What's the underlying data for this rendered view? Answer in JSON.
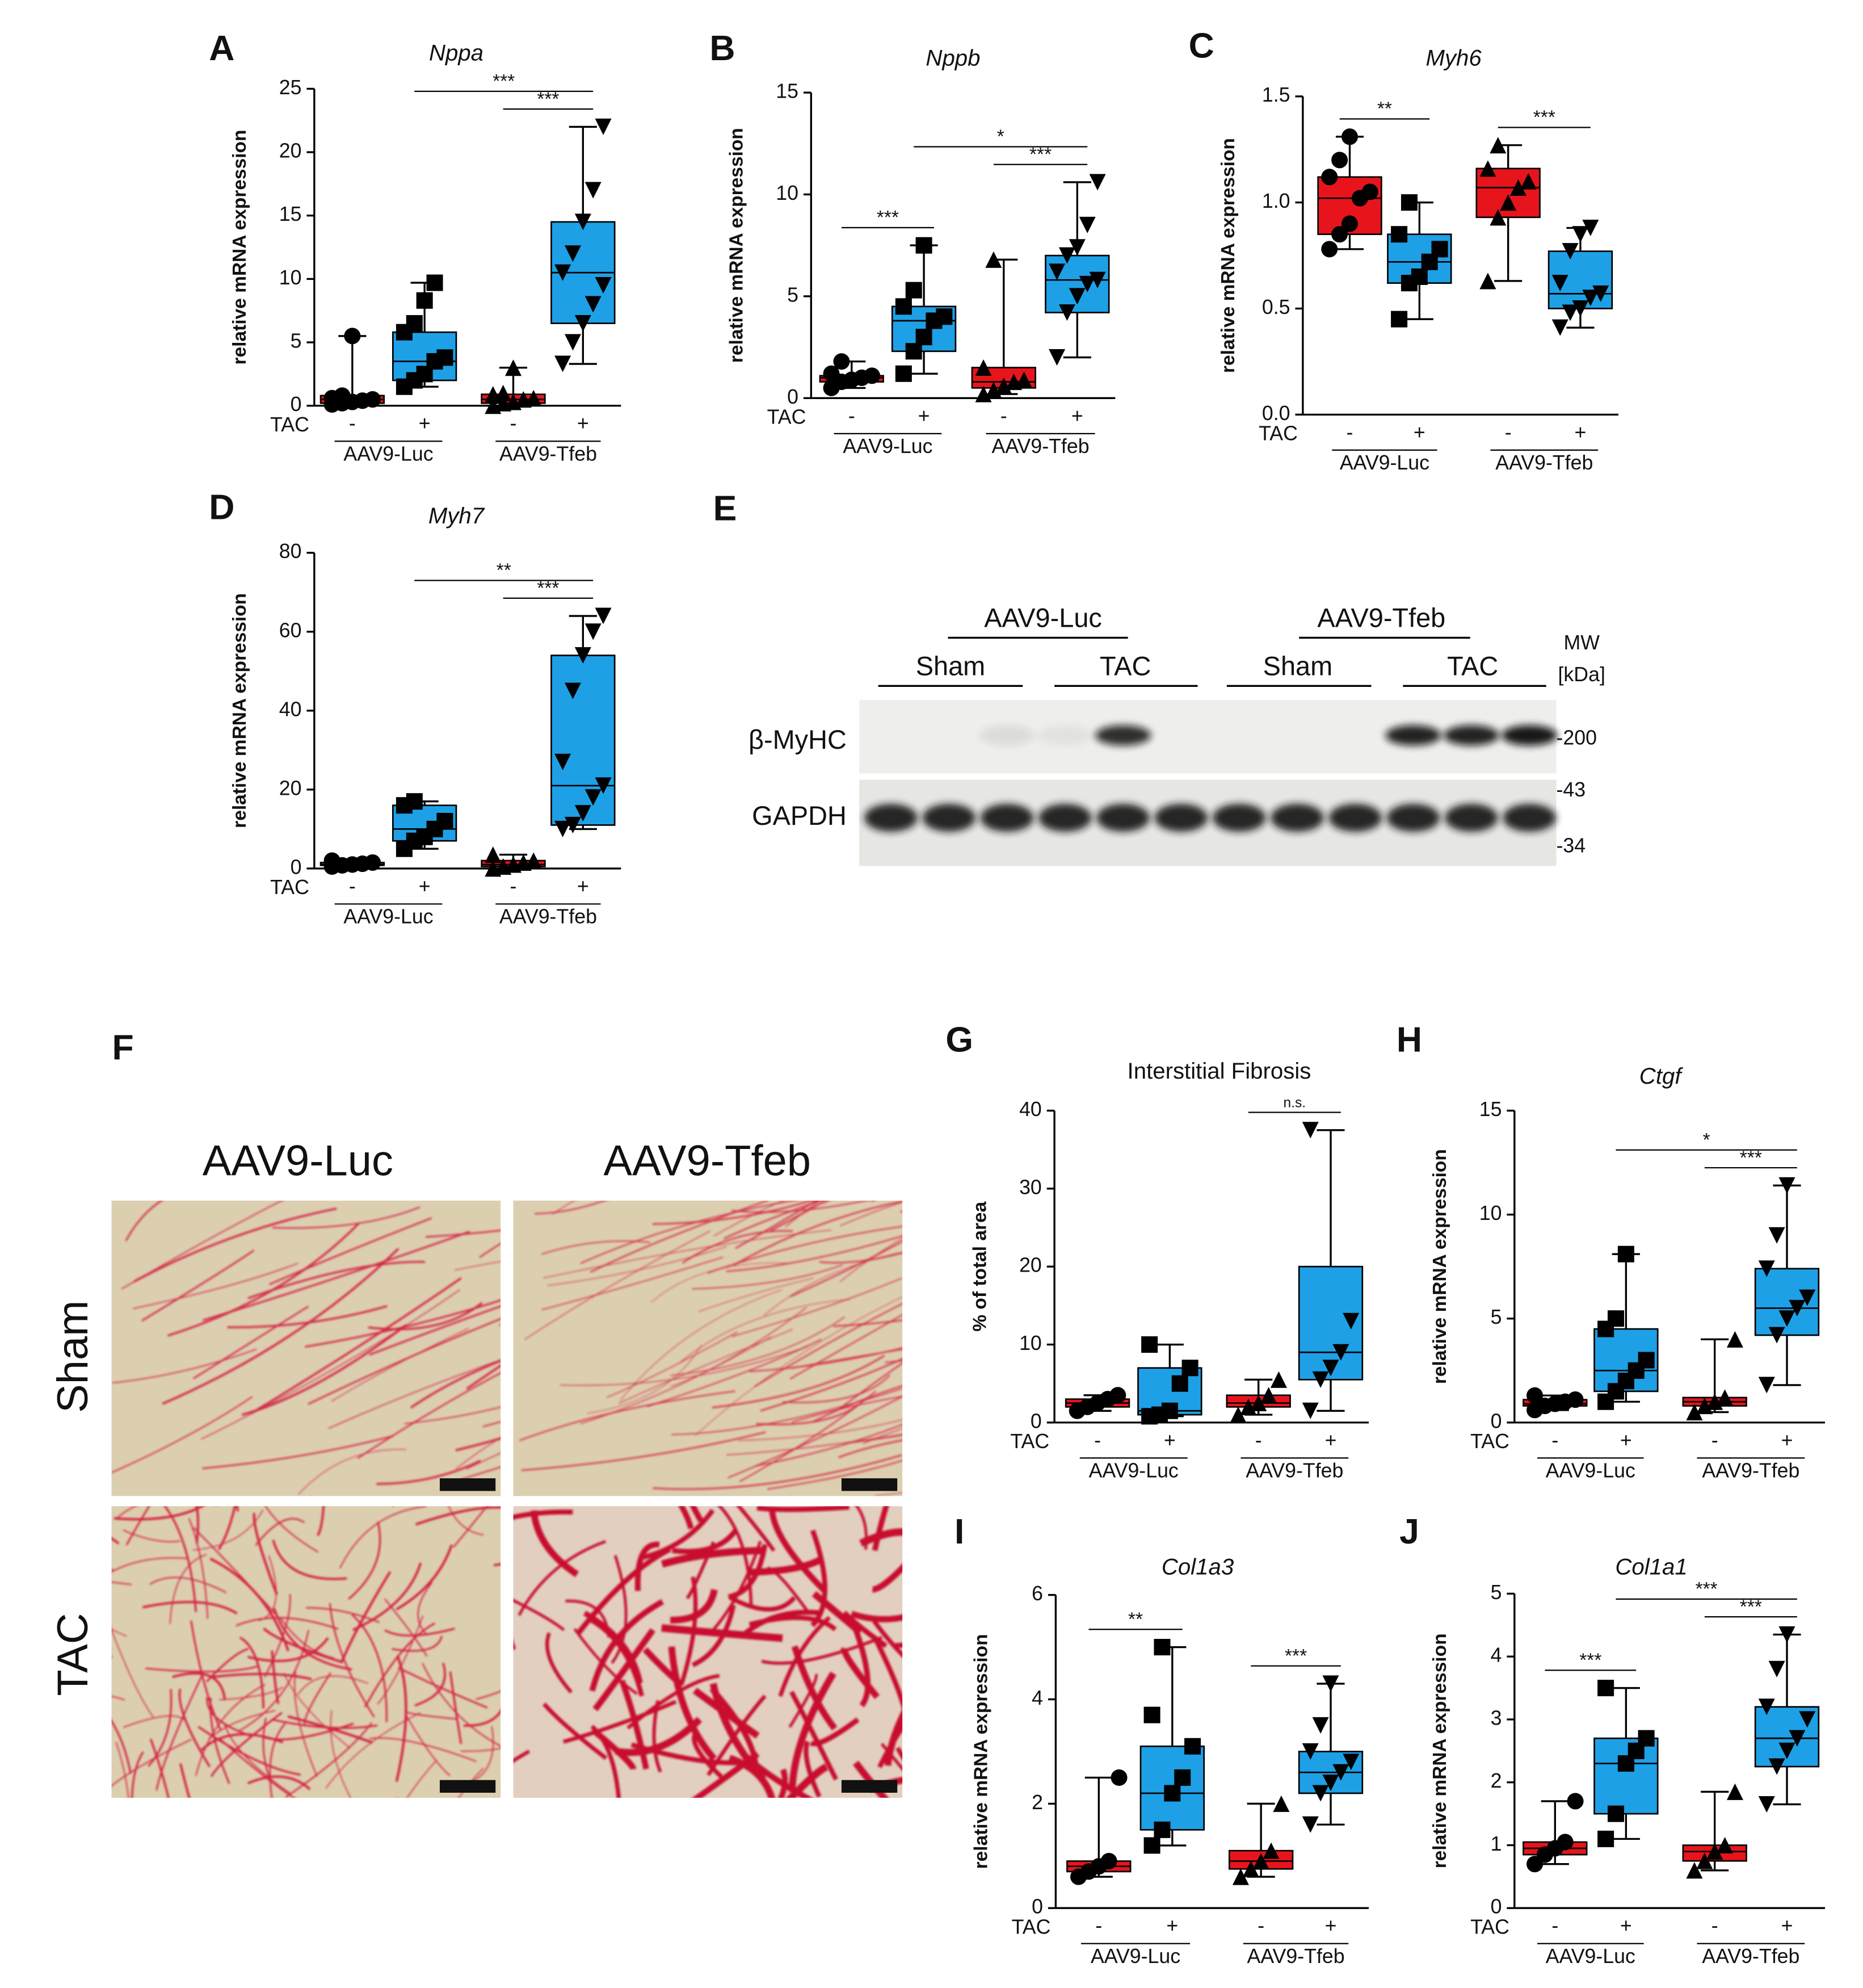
{
  "chart_data": [
    {
      "type": "box",
      "panel": "A",
      "title": "Nppa",
      "italic_title": true,
      "ylabel": "relative mRNA expression",
      "ylim": [
        0,
        25
      ],
      "yticks": [
        0,
        5,
        10,
        15,
        20,
        25
      ],
      "x_label": "TAC",
      "groups": [
        "AAV9-Luc",
        "AAV9-Tfeb"
      ],
      "series": [
        {
          "treatment": "-",
          "color": "#e8141c",
          "marker": "circle",
          "min": 0.1,
          "q1": 0.2,
          "median": 0.5,
          "q3": 0.8,
          "max": 5.5,
          "points": [
            0.1,
            0.2,
            0.3,
            0.4,
            0.5,
            0.6,
            0.8,
            5.5
          ]
        },
        {
          "treatment": "+",
          "color": "#1ea0e6",
          "marker": "square",
          "min": 1.5,
          "q1": 2,
          "median": 3.5,
          "q3": 5.8,
          "max": 9.7,
          "points": [
            1.5,
            2,
            2.5,
            3.5,
            3.8,
            5.8,
            6.5,
            8.3,
            9.7
          ]
        },
        {
          "treatment": "-",
          "color": "#e8141c",
          "marker": "triangle-up",
          "min": 0,
          "q1": 0.2,
          "median": 0.5,
          "q3": 0.9,
          "max": 3,
          "points": [
            0,
            0.2,
            0.3,
            0.5,
            0.6,
            0.9,
            1,
            3
          ]
        },
        {
          "treatment": "+",
          "color": "#1ea0e6",
          "marker": "triangle-down",
          "min": 3.3,
          "q1": 6.5,
          "median": 10.5,
          "q3": 14.5,
          "max": 22,
          "points": [
            3.3,
            5,
            6.5,
            8,
            9.5,
            10.5,
            12,
            14.5,
            17,
            22
          ]
        }
      ],
      "significance": [
        {
          "between": [
            1,
            3
          ],
          "label": "***"
        },
        {
          "between": [
            2,
            3
          ],
          "label": "***"
        }
      ]
    },
    {
      "type": "box",
      "panel": "B",
      "title": "Nppb",
      "italic_title": true,
      "ylabel": "relative mRNA expression",
      "ylim": [
        0,
        15
      ],
      "yticks": [
        0,
        5,
        10,
        15
      ],
      "x_label": "TAC",
      "groups": [
        "AAV9-Luc",
        "AAV9-Tfeb"
      ],
      "series": [
        {
          "treatment": "-",
          "color": "#e8141c",
          "marker": "circle",
          "min": 0.5,
          "q1": 0.8,
          "median": 1.0,
          "q3": 1.1,
          "max": 1.8,
          "points": [
            0.5,
            0.8,
            0.9,
            1.0,
            1.1,
            1.2,
            1.8
          ]
        },
        {
          "treatment": "+",
          "color": "#1ea0e6",
          "marker": "square",
          "min": 1.2,
          "q1": 2.3,
          "median": 3.8,
          "q3": 4.5,
          "max": 7.5,
          "points": [
            1.2,
            2.3,
            3,
            3.8,
            4,
            4.5,
            5.3,
            7.5
          ]
        },
        {
          "treatment": "-",
          "color": "#e8141c",
          "marker": "triangle-up",
          "min": 0.2,
          "q1": 0.5,
          "median": 0.8,
          "q3": 1.5,
          "max": 6.8,
          "points": [
            0.2,
            0.4,
            0.6,
            0.8,
            0.9,
            1.5,
            6.8
          ]
        },
        {
          "treatment": "+",
          "color": "#1ea0e6",
          "marker": "triangle-down",
          "min": 2,
          "q1": 4.2,
          "median": 5.8,
          "q3": 7,
          "max": 10.6,
          "points": [
            2,
            4.2,
            5,
            5.6,
            5.8,
            6.2,
            7,
            7.4,
            8.5,
            10.6
          ]
        }
      ],
      "significance": [
        {
          "between": [
            0,
            1
          ],
          "label": "***"
        },
        {
          "between": [
            1,
            3
          ],
          "label": "*"
        },
        {
          "between": [
            2,
            3
          ],
          "label": "***"
        }
      ]
    },
    {
      "type": "box",
      "panel": "C",
      "title": "Myh6",
      "italic_title": true,
      "ylabel": "relative mRNA expression",
      "ylim": [
        0,
        1.5
      ],
      "yticks": [
        {
          "value": 0,
          "label": "0.0"
        },
        0.5,
        {
          "value": 1,
          "label": "1.0"
        },
        1.5
      ],
      "x_label": "TAC",
      "groups": [
        "AAV9-Luc",
        "AAV9-Tfeb"
      ],
      "series": [
        {
          "treatment": "-",
          "color": "#e8141c",
          "marker": "circle",
          "min": 0.78,
          "q1": 0.85,
          "median": 1.02,
          "q3": 1.12,
          "max": 1.31,
          "points": [
            0.78,
            0.85,
            0.9,
            1.02,
            1.05,
            1.12,
            1.2,
            1.31
          ]
        },
        {
          "treatment": "+",
          "color": "#1ea0e6",
          "marker": "square",
          "min": 0.45,
          "q1": 0.62,
          "median": 0.72,
          "q3": 0.85,
          "max": 1.0,
          "points": [
            0.45,
            0.62,
            0.65,
            0.72,
            0.78,
            0.85,
            1.0
          ]
        },
        {
          "treatment": "-",
          "color": "#e8141c",
          "marker": "triangle-up",
          "min": 0.63,
          "q1": 0.93,
          "median": 1.07,
          "q3": 1.16,
          "max": 1.27,
          "points": [
            0.63,
            0.93,
            1.0,
            1.07,
            1.1,
            1.16,
            1.27
          ]
        },
        {
          "treatment": "+",
          "color": "#1ea0e6",
          "marker": "triangle-down",
          "min": 0.41,
          "q1": 0.5,
          "median": 0.57,
          "q3": 0.77,
          "max": 0.88,
          "points": [
            0.41,
            0.48,
            0.5,
            0.55,
            0.57,
            0.62,
            0.77,
            0.85,
            0.88
          ]
        }
      ],
      "significance": [
        {
          "between": [
            0,
            1
          ],
          "label": "**"
        },
        {
          "between": [
            2,
            3
          ],
          "label": "***"
        }
      ]
    },
    {
      "type": "box",
      "panel": "D",
      "title": "Myh7",
      "italic_title": true,
      "ylabel": "relative mRNA expression",
      "ylim": [
        0,
        80
      ],
      "yticks": [
        0,
        20,
        40,
        60,
        80
      ],
      "x_label": "TAC",
      "groups": [
        "AAV9-Luc",
        "AAV9-Tfeb"
      ],
      "series": [
        {
          "treatment": "-",
          "color": "#e8141c",
          "marker": "circle",
          "min": 0.5,
          "q1": 0.8,
          "median": 1,
          "q3": 1.5,
          "max": 2,
          "points": [
            0.5,
            0.8,
            1,
            1.2,
            1.5,
            2
          ]
        },
        {
          "treatment": "+",
          "color": "#1ea0e6",
          "marker": "square",
          "min": 5,
          "q1": 7,
          "median": 10,
          "q3": 16,
          "max": 17,
          "points": [
            5,
            7,
            8,
            10,
            12,
            16,
            17
          ]
        },
        {
          "treatment": "-",
          "color": "#e8141c",
          "marker": "triangle-up",
          "min": 0,
          "q1": 0.5,
          "median": 1,
          "q3": 2,
          "max": 3.5,
          "points": [
            0,
            0.5,
            1,
            1.5,
            2,
            3.5
          ]
        },
        {
          "treatment": "+",
          "color": "#1ea0e6",
          "marker": "triangle-down",
          "min": 10,
          "q1": 11,
          "median": 21,
          "q3": 54,
          "max": 64,
          "points": [
            10,
            11,
            14,
            18,
            21,
            27,
            45,
            54,
            60,
            64
          ]
        }
      ],
      "significance": [
        {
          "between": [
            1,
            3
          ],
          "label": "**"
        },
        {
          "between": [
            2,
            3
          ],
          "label": "***"
        }
      ]
    },
    {
      "type": "box",
      "panel": "G",
      "title": "Interstitial Fibrosis",
      "italic_title": false,
      "ylabel": "% of total area",
      "ylim": [
        0,
        40
      ],
      "yticks": [
        0,
        10,
        20,
        30,
        40
      ],
      "x_label": "TAC",
      "groups": [
        "AAV9-Luc",
        "AAV9-Tfeb"
      ],
      "series": [
        {
          "treatment": "-",
          "color": "#e8141c",
          "marker": "circle",
          "min": 1.5,
          "q1": 2,
          "median": 2.5,
          "q3": 3,
          "max": 3.5,
          "points": [
            1.5,
            2,
            2.5,
            3,
            3.5
          ]
        },
        {
          "treatment": "+",
          "color": "#1ea0e6",
          "marker": "square",
          "min": 0.8,
          "q1": 1,
          "median": 1.5,
          "q3": 7,
          "max": 10,
          "points": [
            0.8,
            1,
            1.5,
            5,
            7,
            10
          ]
        },
        {
          "treatment": "-",
          "color": "#e8141c",
          "marker": "triangle-up",
          "min": 1,
          "q1": 2,
          "median": 2.5,
          "q3": 3.5,
          "max": 5.5,
          "points": [
            1,
            2,
            2.5,
            3.5,
            5.5
          ]
        },
        {
          "treatment": "+",
          "color": "#1ea0e6",
          "marker": "triangle-down",
          "min": 1.5,
          "q1": 5.5,
          "median": 9,
          "q3": 20,
          "max": 37.5,
          "points": [
            1.5,
            5.5,
            7,
            9,
            13,
            37.5
          ]
        }
      ],
      "significance": [
        {
          "between": [
            2,
            3
          ],
          "label": "n.s."
        }
      ]
    },
    {
      "type": "box",
      "panel": "H",
      "title": "Ctgf",
      "italic_title": true,
      "ylabel": "relative mRNA expression",
      "ylim": [
        0,
        15
      ],
      "yticks": [
        0,
        5,
        10,
        15
      ],
      "x_label": "TAC",
      "groups": [
        "AAV9-Luc",
        "AAV9-Tfeb"
      ],
      "series": [
        {
          "treatment": "-",
          "color": "#e8141c",
          "marker": "circle",
          "min": 0.6,
          "q1": 0.8,
          "median": 0.9,
          "q3": 1.1,
          "max": 1.3,
          "points": [
            0.6,
            0.8,
            0.9,
            1,
            1.1,
            1.3
          ]
        },
        {
          "treatment": "+",
          "color": "#1ea0e6",
          "marker": "square",
          "min": 1,
          "q1": 1.5,
          "median": 2.5,
          "q3": 4.5,
          "max": 8.1,
          "points": [
            1,
            1.5,
            2,
            2.5,
            3,
            4.5,
            5,
            8.1
          ]
        },
        {
          "treatment": "-",
          "color": "#e8141c",
          "marker": "triangle-up",
          "min": 0.5,
          "q1": 0.8,
          "median": 1,
          "q3": 1.2,
          "max": 4,
          "points": [
            0.5,
            0.8,
            1,
            1.2,
            4
          ]
        },
        {
          "treatment": "+",
          "color": "#1ea0e6",
          "marker": "triangle-down",
          "min": 1.8,
          "q1": 4.2,
          "median": 5.5,
          "q3": 7.4,
          "max": 11.4,
          "points": [
            1.8,
            4.2,
            5,
            5.5,
            6,
            7.4,
            9,
            11.4
          ]
        }
      ],
      "significance": [
        {
          "between": [
            1,
            3
          ],
          "label": "*"
        },
        {
          "between": [
            2,
            3
          ],
          "label": "***"
        }
      ]
    },
    {
      "type": "box",
      "panel": "I",
      "title": "Col1a3",
      "italic_title": true,
      "ylabel": "relative mRNA expression",
      "ylim": [
        0,
        6
      ],
      "yticks": [
        0,
        2,
        4,
        6
      ],
      "x_label": "TAC",
      "groups": [
        "AAV9-Luc",
        "AAV9-Tfeb"
      ],
      "series": [
        {
          "treatment": "-",
          "color": "#e8141c",
          "marker": "circle",
          "min": 0.6,
          "q1": 0.7,
          "median": 0.8,
          "q3": 0.9,
          "max": 2.5,
          "points": [
            0.6,
            0.7,
            0.8,
            0.9,
            2.5
          ]
        },
        {
          "treatment": "+",
          "color": "#1ea0e6",
          "marker": "square",
          "min": 1.2,
          "q1": 1.5,
          "median": 2.2,
          "q3": 3.1,
          "max": 5,
          "points": [
            1.2,
            1.5,
            2.2,
            2.5,
            3.1,
            3.7,
            5
          ]
        },
        {
          "treatment": "-",
          "color": "#e8141c",
          "marker": "triangle-up",
          "min": 0.6,
          "q1": 0.75,
          "median": 0.9,
          "q3": 1.1,
          "max": 2,
          "points": [
            0.6,
            0.75,
            0.9,
            1.1,
            2
          ]
        },
        {
          "treatment": "+",
          "color": "#1ea0e6",
          "marker": "triangle-down",
          "min": 1.6,
          "q1": 2.2,
          "median": 2.6,
          "q3": 3,
          "max": 4.3,
          "points": [
            1.6,
            2.2,
            2.4,
            2.6,
            2.8,
            3,
            3.5,
            4.3
          ]
        }
      ],
      "significance": [
        {
          "between": [
            0,
            1
          ],
          "label": "**"
        },
        {
          "between": [
            2,
            3
          ],
          "label": "***"
        }
      ]
    },
    {
      "type": "box",
      "panel": "J",
      "title": "Col1a1",
      "italic_title": true,
      "ylabel": "relative mRNA expression",
      "ylim": [
        0,
        5
      ],
      "yticks": [
        0,
        1,
        2,
        3,
        4,
        5
      ],
      "x_label": "TAC",
      "groups": [
        "AAV9-Luc",
        "AAV9-Tfeb"
      ],
      "series": [
        {
          "treatment": "-",
          "color": "#e8141c",
          "marker": "circle",
          "min": 0.7,
          "q1": 0.85,
          "median": 0.95,
          "q3": 1.05,
          "max": 1.7,
          "points": [
            0.7,
            0.85,
            0.95,
            1.05,
            1.7
          ]
        },
        {
          "treatment": "+",
          "color": "#1ea0e6",
          "marker": "square",
          "min": 1.1,
          "q1": 1.5,
          "median": 2.3,
          "q3": 2.7,
          "max": 3.5,
          "points": [
            1.1,
            1.5,
            2.3,
            2.5,
            2.7,
            3.5
          ]
        },
        {
          "treatment": "-",
          "color": "#e8141c",
          "marker": "triangle-up",
          "min": 0.6,
          "q1": 0.75,
          "median": 0.9,
          "q3": 1,
          "max": 1.85,
          "points": [
            0.6,
            0.75,
            0.9,
            1,
            1.85
          ]
        },
        {
          "treatment": "+",
          "color": "#1ea0e6",
          "marker": "triangle-down",
          "min": 1.65,
          "q1": 2.25,
          "median": 2.7,
          "q3": 3.2,
          "max": 4.35,
          "points": [
            1.65,
            2.25,
            2.5,
            2.7,
            3,
            3.2,
            3.8,
            4.35
          ]
        }
      ],
      "significance": [
        {
          "between": [
            0,
            1
          ],
          "label": "***"
        },
        {
          "between": [
            1,
            3
          ],
          "label": "***"
        },
        {
          "between": [
            2,
            3
          ],
          "label": "***"
        }
      ]
    }
  ],
  "blot": {
    "panel": "E",
    "groups": [
      "AAV9-Luc",
      "AAV9-Tfeb"
    ],
    "conditions": [
      "Sham",
      "TAC",
      "Sham",
      "TAC"
    ],
    "mw_title": "MW",
    "mw_unit": "[kDa]",
    "rows": [
      "β-MyHC",
      "GAPDH"
    ],
    "mw_markers": [
      "-200",
      "-43",
      "-34"
    ]
  },
  "histology": {
    "panel": "F",
    "columns": [
      "AAV9-Luc",
      "AAV9-Tfeb"
    ],
    "rows": [
      "Sham",
      "TAC"
    ]
  }
}
